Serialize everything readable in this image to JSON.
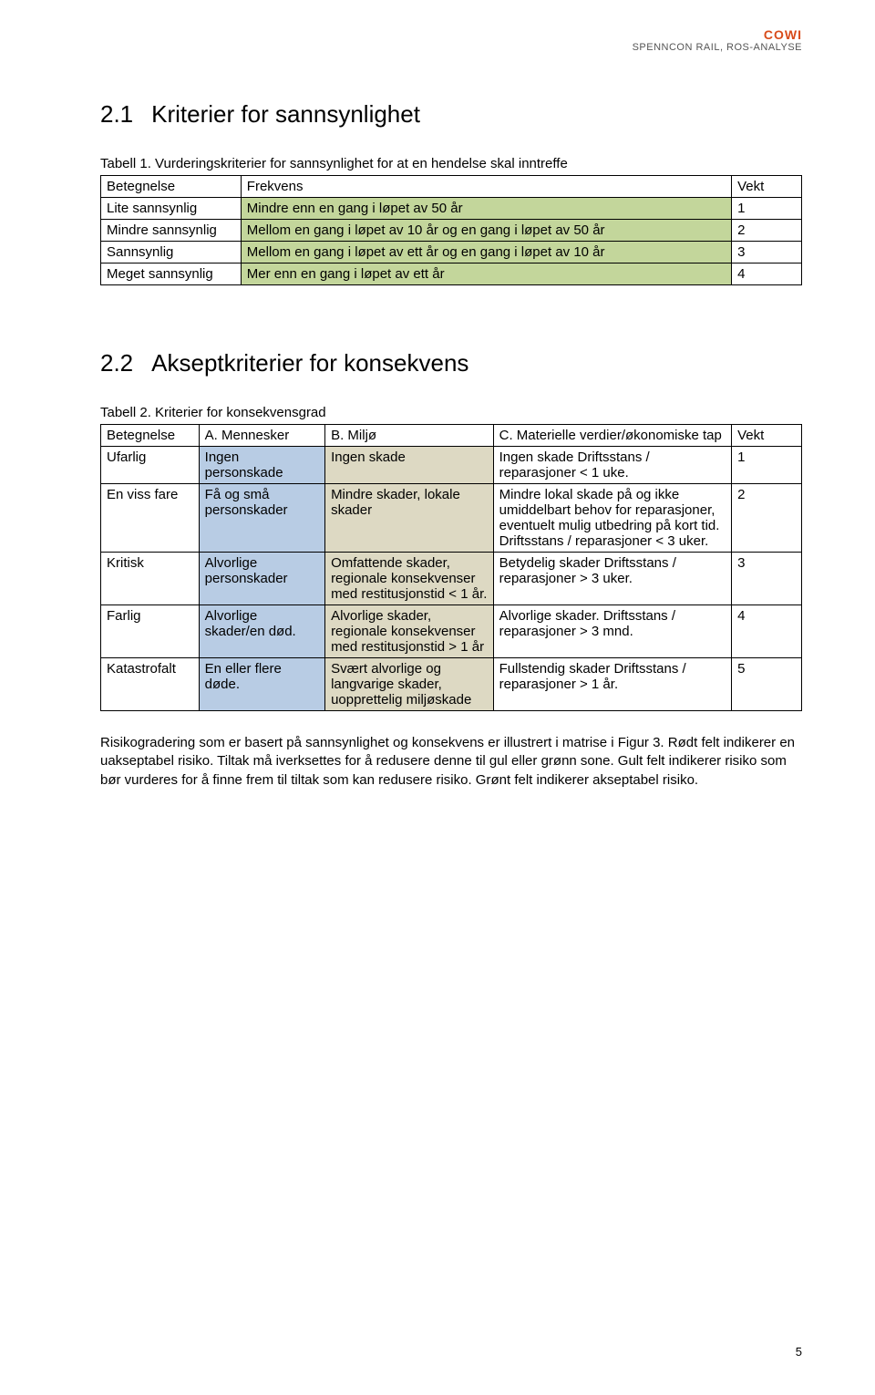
{
  "header": {
    "logo": "COWI",
    "doc_title": "SPENNCON RAIL, ROS-ANALYSE"
  },
  "section1": {
    "number": "2.1",
    "title": "Kriterier for sannsynlighet",
    "caption": "Tabell 1. Vurderingskriterier for sannsynlighet for at en hendelse skal inntreffe",
    "headers": [
      "Betegnelse",
      "Frekvens",
      "Vekt"
    ],
    "rows": [
      {
        "b": "Lite sannsynlig",
        "f": "Mindre enn en gang i løpet av 50 år",
        "v": "1"
      },
      {
        "b": "Mindre sannsynlig",
        "f": "Mellom en gang i løpet av 10 år og en gang i løpet av 50 år",
        "v": "2"
      },
      {
        "b": "Sannsynlig",
        "f": "Mellom en gang i løpet av ett år og en gang i løpet av 10 år",
        "v": "3"
      },
      {
        "b": "Meget sannsynlig",
        "f": "Mer enn en gang i løpet av ett år",
        "v": "4"
      }
    ]
  },
  "section2": {
    "number": "2.2",
    "title": "Akseptkriterier for konsekvens",
    "caption": "Tabell 2. Kriterier for konsekvensgrad",
    "headers": [
      "Betegnelse",
      "A. Mennesker",
      "B. Miljø",
      "C. Materielle verdier/økonomiske tap",
      "Vekt"
    ],
    "rows": [
      {
        "b": "Ufarlig",
        "a": "Ingen personskade",
        "m": "Ingen skade",
        "c": "Ingen skade\nDriftsstans / reparasjoner\n< 1 uke.",
        "v": "1"
      },
      {
        "b": "En viss fare",
        "a": "Få og små personskader",
        "m": "Mindre skader, lokale skader",
        "c": "Mindre lokal skade på og ikke umiddelbart behov for reparasjoner, eventuelt mulig utbedring på kort tid. Driftsstans / reparasjoner  < 3 uker.",
        "v": "2"
      },
      {
        "b": "Kritisk",
        "a": "Alvorlige personskader",
        "m": "Omfattende skader, regionale konsekvenser med restitusjonstid < 1 år.",
        "c": "Betydelig skader\nDriftsstans / reparasjoner\n> 3 uker.",
        "v": "3"
      },
      {
        "b": "Farlig",
        "a": "Alvorlige skader/en død.",
        "m": "Alvorlige skader, regionale konsekvenser med restitusjonstid > 1 år",
        "c": "Alvorlige skader.\nDriftsstans / reparasjoner\n> 3 mnd.",
        "v": "4"
      },
      {
        "b": "Katastrofalt",
        "a": "En eller flere døde.",
        "m": "Svært alvorlige og langvarige skader, uopprettelig miljøskade",
        "c": "Fullstendig skader\nDriftsstans / reparasjoner\n> 1 år.",
        "v": "5"
      }
    ]
  },
  "paragraph": "Risikogradering som er basert på sannsynlighet og konsekvens er illustrert i matrise i Figur 3. Rødt felt indikerer en uakseptabel risiko. Tiltak må iverksettes for å redusere denne til gul eller grønn sone. Gult felt indikerer risiko som bør vurderes for å finne frem til tiltak som kan redusere risiko. Grønt felt indikerer akseptabel risiko.",
  "colors": {
    "green_fill": "#c3d69b",
    "blue_fill": "#b8cce4",
    "tan_fill": "#ddd9c3",
    "cowi_orange": "#d84b1a"
  },
  "page_number": "5"
}
